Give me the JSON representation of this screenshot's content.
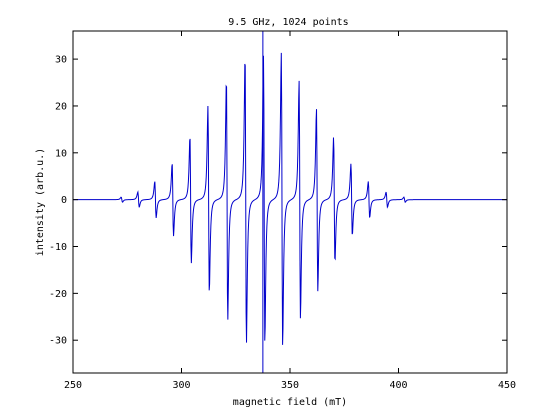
{
  "chart_data": {
    "type": "line",
    "title": "9.5 GHz, 1024 points",
    "xlabel": "magnetic field (mT)",
    "ylabel": "intensity (arb.u.)",
    "xlim": [
      250,
      450
    ],
    "ylim": [
      -37,
      36
    ],
    "xticks": [
      250,
      300,
      350,
      400,
      450
    ],
    "yticks": [
      -30,
      -20,
      -10,
      0,
      10,
      20,
      30
    ],
    "grid": false,
    "legend": "none",
    "line_color": "#0000cc",
    "center": 337.5,
    "lines": [
      {
        "pos": 272.5,
        "amp": 0.6
      },
      {
        "pos": 280.2,
        "amp": 1.8
      },
      {
        "pos": 288.0,
        "amp": 4.3
      },
      {
        "pos": 296.0,
        "amp": 8.6
      },
      {
        "pos": 304.2,
        "amp": 15.0
      },
      {
        "pos": 312.5,
        "amp": 22.0
      },
      {
        "pos": 321.0,
        "amp": 28.5
      },
      {
        "pos": 329.6,
        "amp": 34.0
      },
      {
        "pos": 338.1,
        "amp": 33.8
      },
      {
        "pos": 346.3,
        "amp": 34.5
      },
      {
        "pos": 354.5,
        "amp": 28.0
      },
      {
        "pos": 362.5,
        "amp": 21.5
      },
      {
        "pos": 370.4,
        "amp": 14.8
      },
      {
        "pos": 378.4,
        "amp": 8.5
      },
      {
        "pos": 386.4,
        "amp": 4.3
      },
      {
        "pos": 394.6,
        "amp": 1.8
      },
      {
        "pos": 402.8,
        "amp": 0.6
      }
    ]
  }
}
